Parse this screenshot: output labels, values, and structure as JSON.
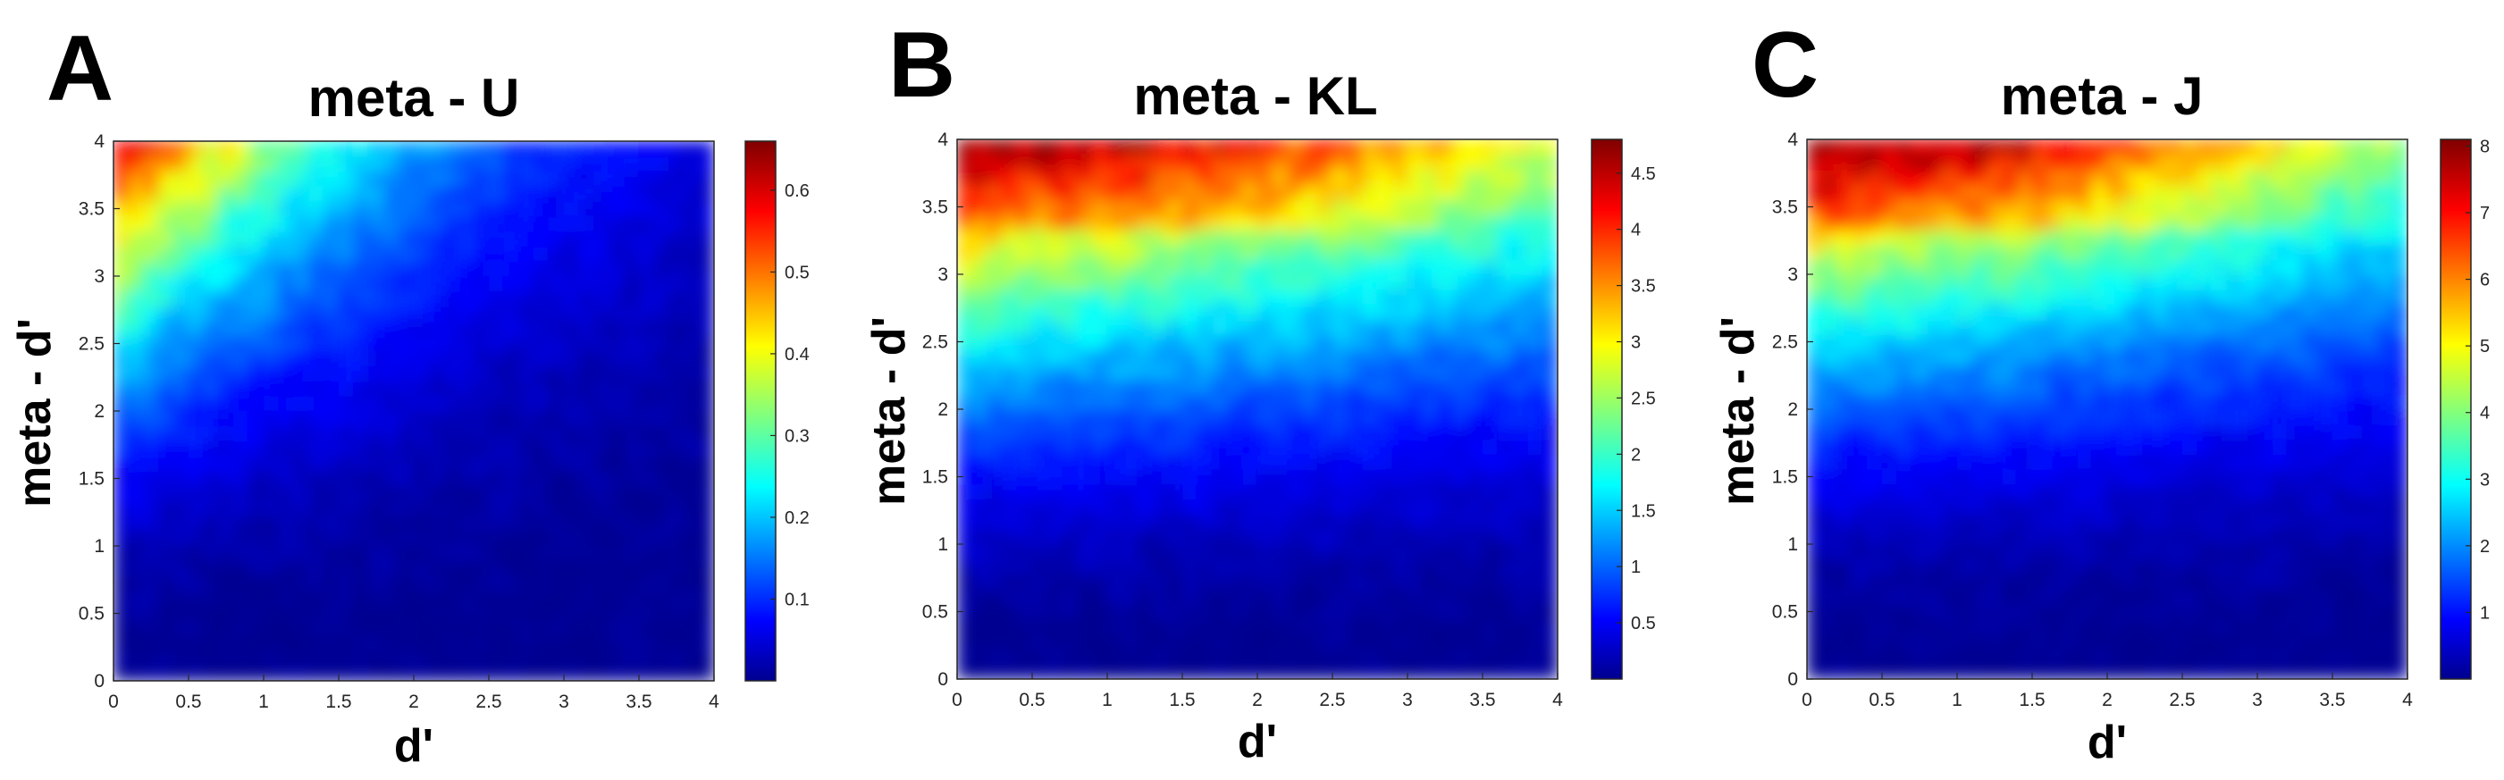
{
  "colormap": "jet",
  "colormap_stops": [
    "#00008f",
    "#0000ff",
    "#00ffff",
    "#ffff00",
    "#ff0000",
    "#800000"
  ],
  "chart_data": [
    {
      "type": "heatmap",
      "panel_letter": "A",
      "title": "meta - U",
      "xlabel": "d'",
      "ylabel": "meta - d'",
      "xlim": [
        0,
        4
      ],
      "ylim": [
        0,
        4
      ],
      "xticks": [
        "0",
        "0.5",
        "1",
        "1.5",
        "2",
        "2.5",
        "3",
        "3.5",
        "4"
      ],
      "yticks": [
        "0",
        "0.5",
        "1",
        "1.5",
        "2",
        "2.5",
        "3",
        "3.5",
        "4"
      ],
      "colorbar_range": [
        0,
        0.66
      ],
      "colorbar_ticks": [
        "0.1",
        "0.2",
        "0.3",
        "0.4",
        "0.5",
        "0.6"
      ],
      "colorbar_tick_values": [
        0.1,
        0.2,
        0.3,
        0.4,
        0.5,
        0.6
      ],
      "pattern": "maximum at low d' and high meta-d'; value falls with increasing d' and decreasing meta-d'",
      "max_at": {
        "x": 0,
        "y": 4,
        "value": 0.66
      },
      "min_region_value": 0.0,
      "grid": false,
      "colorbar": "right"
    },
    {
      "type": "heatmap",
      "panel_letter": "B",
      "title": "meta - KL",
      "xlabel": "d'",
      "ylabel": "meta - d'",
      "xlim": [
        0,
        4
      ],
      "ylim": [
        0,
        4
      ],
      "xticks": [
        "0",
        "0.5",
        "1",
        "1.5",
        "2",
        "2.5",
        "3",
        "3.5",
        "4"
      ],
      "yticks": [
        "0",
        "0.5",
        "1",
        "1.5",
        "2",
        "2.5",
        "3",
        "3.5",
        "4"
      ],
      "colorbar_range": [
        0,
        4.8
      ],
      "colorbar_ticks": [
        "0.5",
        "1",
        "1.5",
        "2",
        "2.5",
        "3",
        "3.5",
        "4",
        "4.5"
      ],
      "colorbar_tick_values": [
        0.5,
        1,
        1.5,
        2,
        2.5,
        3,
        3.5,
        4,
        4.5
      ],
      "pattern": "value increases mainly with meta-d'; highest near meta-d' = 4 at low to mid d'",
      "max_at": {
        "x": 1.0,
        "y": 4,
        "value": 4.8
      },
      "min_region_value": 0.0,
      "grid": false,
      "colorbar": "right"
    },
    {
      "type": "heatmap",
      "panel_letter": "C",
      "title": "meta - J",
      "xlabel": "d'",
      "ylabel": "meta - d'",
      "xlim": [
        0,
        4
      ],
      "ylim": [
        0,
        4
      ],
      "xticks": [
        "0",
        "0.5",
        "1",
        "1.5",
        "2",
        "2.5",
        "3",
        "3.5",
        "4"
      ],
      "yticks": [
        "0",
        "0.5",
        "1",
        "1.5",
        "2",
        "2.5",
        "3",
        "3.5",
        "4"
      ],
      "colorbar_range": [
        0,
        8.1
      ],
      "colorbar_ticks": [
        "1",
        "2",
        "3",
        "4",
        "5",
        "6",
        "7",
        "8"
      ],
      "colorbar_tick_values": [
        1,
        2,
        3,
        4,
        5,
        6,
        7,
        8
      ],
      "pattern": "value increases mainly with meta-d'; highest near meta-d' = 4 at low to mid d'",
      "max_at": {
        "x": 1.0,
        "y": 4,
        "value": 8.1
      },
      "min_region_value": 0.0,
      "grid": false,
      "colorbar": "right"
    }
  ]
}
